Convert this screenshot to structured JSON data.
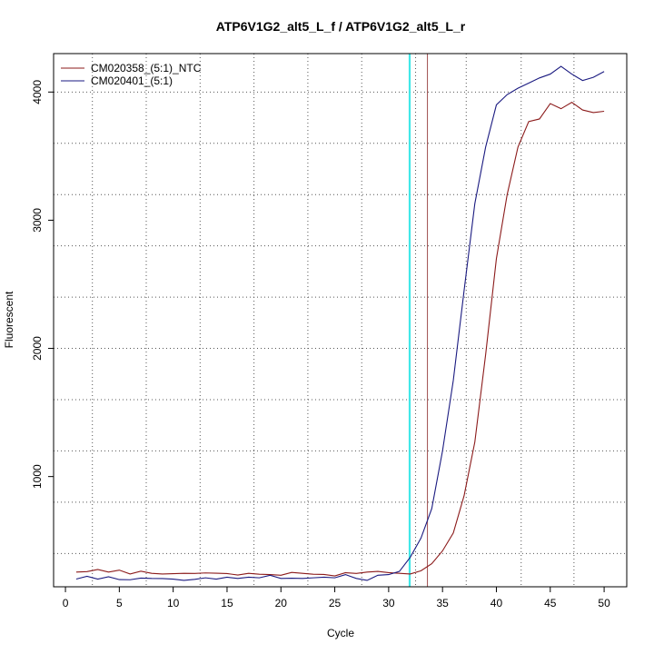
{
  "chart_data": {
    "type": "line",
    "title": "ATP6V1G2_alt5_L_f / ATP6V1G2_alt5_L_r",
    "xlabel": "Cycle",
    "ylabel": "Fluorescent",
    "xlim": [
      -1.1,
      52.1
    ],
    "ylim": [
      140,
      4300
    ],
    "xticks": [
      0,
      5,
      10,
      15,
      20,
      25,
      30,
      35,
      40,
      45,
      50
    ],
    "yticks": [
      1000,
      2000,
      3000,
      4000
    ],
    "x_minor_grid": [
      2.5,
      7.5,
      12.5,
      17.5,
      22.5,
      27.5,
      32.5,
      37.2,
      42.3,
      47.2
    ],
    "y_minor_grid": [
      400,
      800,
      1200,
      1600,
      2000,
      2400,
      2800,
      3200,
      3600,
      4000
    ],
    "grid": true,
    "legend": "top-left",
    "x": [
      1,
      2,
      3,
      4,
      5,
      6,
      7,
      8,
      9,
      10,
      11,
      12,
      13,
      14,
      15,
      16,
      17,
      18,
      19,
      20,
      21,
      22,
      23,
      24,
      25,
      26,
      27,
      28,
      29,
      30,
      31,
      32,
      33,
      34,
      35,
      36,
      37,
      38,
      39,
      40,
      41,
      42,
      43,
      44,
      45,
      46,
      47,
      48,
      49,
      50
    ],
    "series": [
      {
        "name": "CM020358_(5:1)_NTC",
        "color": "#8b1a1a",
        "values": [
          255,
          258,
          275,
          255,
          270,
          240,
          262,
          245,
          240,
          242,
          245,
          244,
          248,
          246,
          243,
          232,
          245,
          238,
          235,
          230,
          252,
          245,
          238,
          236,
          225,
          250,
          244,
          255,
          260,
          250,
          245,
          240,
          265,
          320,
          420,
          560,
          850,
          1270,
          1950,
          2700,
          3200,
          3570,
          3770,
          3790,
          3910,
          3870,
          3920,
          3860,
          3840,
          3850
        ]
      },
      {
        "name": "CM020401_(5:1)",
        "color": "#1a1a80",
        "values": [
          200,
          222,
          200,
          218,
          196,
          195,
          208,
          205,
          204,
          200,
          190,
          198,
          210,
          200,
          215,
          205,
          215,
          210,
          230,
          205,
          207,
          205,
          210,
          215,
          210,
          235,
          205,
          190,
          230,
          235,
          260,
          370,
          520,
          750,
          1200,
          1750,
          2450,
          3130,
          3570,
          3900,
          3980,
          4030,
          4070,
          4110,
          4140,
          4200,
          4140,
          4090,
          4115,
          4160
        ]
      }
    ],
    "vlines": [
      {
        "x": 31.9,
        "color": "#2ee6e6"
      },
      {
        "x": 32.0,
        "color": "#2ee6e6"
      },
      {
        "x": 33.6,
        "color": "#a05050"
      }
    ]
  }
}
